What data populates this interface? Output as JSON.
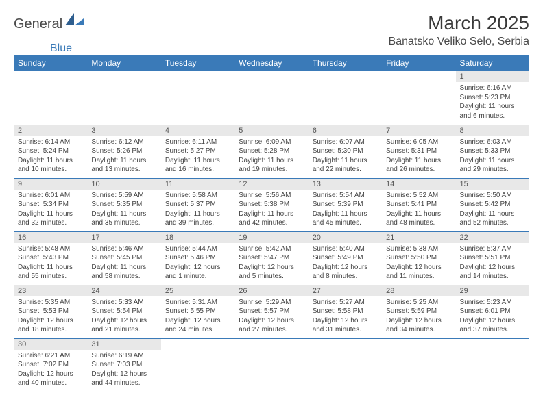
{
  "logo": {
    "part1": "General",
    "part2": "Blue"
  },
  "title": "March 2025",
  "location": "Banatsko Veliko Selo, Serbia",
  "accent_color": "#3a7ab8",
  "header_bg": "#3a7ab8",
  "daynum_bg": "#e8e8e8",
  "weekdays": [
    "Sunday",
    "Monday",
    "Tuesday",
    "Wednesday",
    "Thursday",
    "Friday",
    "Saturday"
  ],
  "weeks": [
    [
      null,
      null,
      null,
      null,
      null,
      null,
      {
        "n": "1",
        "sr": "Sunrise: 6:16 AM",
        "ss": "Sunset: 5:23 PM",
        "dl": "Daylight: 11 hours and 6 minutes."
      }
    ],
    [
      {
        "n": "2",
        "sr": "Sunrise: 6:14 AM",
        "ss": "Sunset: 5:24 PM",
        "dl": "Daylight: 11 hours and 10 minutes."
      },
      {
        "n": "3",
        "sr": "Sunrise: 6:12 AM",
        "ss": "Sunset: 5:26 PM",
        "dl": "Daylight: 11 hours and 13 minutes."
      },
      {
        "n": "4",
        "sr": "Sunrise: 6:11 AM",
        "ss": "Sunset: 5:27 PM",
        "dl": "Daylight: 11 hours and 16 minutes."
      },
      {
        "n": "5",
        "sr": "Sunrise: 6:09 AM",
        "ss": "Sunset: 5:28 PM",
        "dl": "Daylight: 11 hours and 19 minutes."
      },
      {
        "n": "6",
        "sr": "Sunrise: 6:07 AM",
        "ss": "Sunset: 5:30 PM",
        "dl": "Daylight: 11 hours and 22 minutes."
      },
      {
        "n": "7",
        "sr": "Sunrise: 6:05 AM",
        "ss": "Sunset: 5:31 PM",
        "dl": "Daylight: 11 hours and 26 minutes."
      },
      {
        "n": "8",
        "sr": "Sunrise: 6:03 AM",
        "ss": "Sunset: 5:33 PM",
        "dl": "Daylight: 11 hours and 29 minutes."
      }
    ],
    [
      {
        "n": "9",
        "sr": "Sunrise: 6:01 AM",
        "ss": "Sunset: 5:34 PM",
        "dl": "Daylight: 11 hours and 32 minutes."
      },
      {
        "n": "10",
        "sr": "Sunrise: 5:59 AM",
        "ss": "Sunset: 5:35 PM",
        "dl": "Daylight: 11 hours and 35 minutes."
      },
      {
        "n": "11",
        "sr": "Sunrise: 5:58 AM",
        "ss": "Sunset: 5:37 PM",
        "dl": "Daylight: 11 hours and 39 minutes."
      },
      {
        "n": "12",
        "sr": "Sunrise: 5:56 AM",
        "ss": "Sunset: 5:38 PM",
        "dl": "Daylight: 11 hours and 42 minutes."
      },
      {
        "n": "13",
        "sr": "Sunrise: 5:54 AM",
        "ss": "Sunset: 5:39 PM",
        "dl": "Daylight: 11 hours and 45 minutes."
      },
      {
        "n": "14",
        "sr": "Sunrise: 5:52 AM",
        "ss": "Sunset: 5:41 PM",
        "dl": "Daylight: 11 hours and 48 minutes."
      },
      {
        "n": "15",
        "sr": "Sunrise: 5:50 AM",
        "ss": "Sunset: 5:42 PM",
        "dl": "Daylight: 11 hours and 52 minutes."
      }
    ],
    [
      {
        "n": "16",
        "sr": "Sunrise: 5:48 AM",
        "ss": "Sunset: 5:43 PM",
        "dl": "Daylight: 11 hours and 55 minutes."
      },
      {
        "n": "17",
        "sr": "Sunrise: 5:46 AM",
        "ss": "Sunset: 5:45 PM",
        "dl": "Daylight: 11 hours and 58 minutes."
      },
      {
        "n": "18",
        "sr": "Sunrise: 5:44 AM",
        "ss": "Sunset: 5:46 PM",
        "dl": "Daylight: 12 hours and 1 minute."
      },
      {
        "n": "19",
        "sr": "Sunrise: 5:42 AM",
        "ss": "Sunset: 5:47 PM",
        "dl": "Daylight: 12 hours and 5 minutes."
      },
      {
        "n": "20",
        "sr": "Sunrise: 5:40 AM",
        "ss": "Sunset: 5:49 PM",
        "dl": "Daylight: 12 hours and 8 minutes."
      },
      {
        "n": "21",
        "sr": "Sunrise: 5:38 AM",
        "ss": "Sunset: 5:50 PM",
        "dl": "Daylight: 12 hours and 11 minutes."
      },
      {
        "n": "22",
        "sr": "Sunrise: 5:37 AM",
        "ss": "Sunset: 5:51 PM",
        "dl": "Daylight: 12 hours and 14 minutes."
      }
    ],
    [
      {
        "n": "23",
        "sr": "Sunrise: 5:35 AM",
        "ss": "Sunset: 5:53 PM",
        "dl": "Daylight: 12 hours and 18 minutes."
      },
      {
        "n": "24",
        "sr": "Sunrise: 5:33 AM",
        "ss": "Sunset: 5:54 PM",
        "dl": "Daylight: 12 hours and 21 minutes."
      },
      {
        "n": "25",
        "sr": "Sunrise: 5:31 AM",
        "ss": "Sunset: 5:55 PM",
        "dl": "Daylight: 12 hours and 24 minutes."
      },
      {
        "n": "26",
        "sr": "Sunrise: 5:29 AM",
        "ss": "Sunset: 5:57 PM",
        "dl": "Daylight: 12 hours and 27 minutes."
      },
      {
        "n": "27",
        "sr": "Sunrise: 5:27 AM",
        "ss": "Sunset: 5:58 PM",
        "dl": "Daylight: 12 hours and 31 minutes."
      },
      {
        "n": "28",
        "sr": "Sunrise: 5:25 AM",
        "ss": "Sunset: 5:59 PM",
        "dl": "Daylight: 12 hours and 34 minutes."
      },
      {
        "n": "29",
        "sr": "Sunrise: 5:23 AM",
        "ss": "Sunset: 6:01 PM",
        "dl": "Daylight: 12 hours and 37 minutes."
      }
    ],
    [
      {
        "n": "30",
        "sr": "Sunrise: 6:21 AM",
        "ss": "Sunset: 7:02 PM",
        "dl": "Daylight: 12 hours and 40 minutes."
      },
      {
        "n": "31",
        "sr": "Sunrise: 6:19 AM",
        "ss": "Sunset: 7:03 PM",
        "dl": "Daylight: 12 hours and 44 minutes."
      },
      null,
      null,
      null,
      null,
      null
    ]
  ]
}
